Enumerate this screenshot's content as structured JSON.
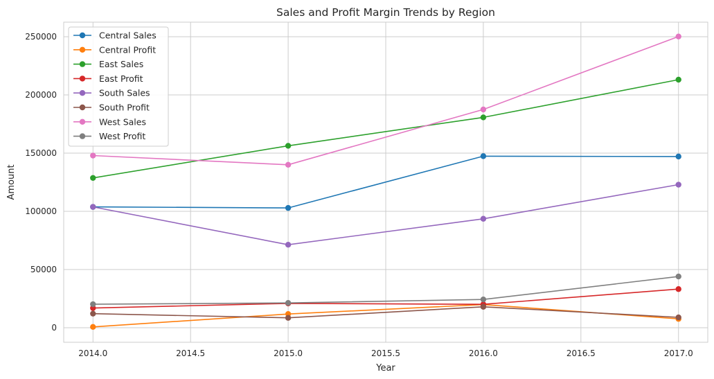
{
  "chart_data": {
    "type": "line",
    "title": "Sales and Profit Margin Trends by Region",
    "xlabel": "Year",
    "ylabel": "Amount",
    "xlim": [
      2013.85,
      2017.15
    ],
    "ylim": [
      -12500,
      262500
    ],
    "x_ticks": [
      2014.0,
      2014.5,
      2015.0,
      2015.5,
      2016.0,
      2016.5,
      2017.0
    ],
    "x_tick_labels": [
      "2014.0",
      "2014.5",
      "2015.0",
      "2015.5",
      "2016.0",
      "2016.5",
      "2017.0"
    ],
    "y_ticks": [
      0,
      50000,
      100000,
      150000,
      200000,
      250000
    ],
    "y_tick_labels": [
      "0",
      "50000",
      "100000",
      "150000",
      "200000",
      "250000"
    ],
    "grid": true,
    "legend_position": "top-left",
    "x": [
      2014,
      2015,
      2016,
      2017
    ],
    "series": [
      {
        "name": "Central Sales",
        "color": "#1f77b4",
        "values": [
          103800,
          102900,
          147400,
          147100
        ]
      },
      {
        "name": "Central Profit",
        "color": "#ff7f0e",
        "values": [
          700,
          11800,
          19900,
          7600
        ]
      },
      {
        "name": "East Sales",
        "color": "#2ca02c",
        "values": [
          128700,
          156300,
          180700,
          213100
        ]
      },
      {
        "name": "East Profit",
        "color": "#d62728",
        "values": [
          16900,
          20900,
          20100,
          33200
        ]
      },
      {
        "name": "South Sales",
        "color": "#9467bd",
        "values": [
          103800,
          71300,
          93600,
          122900
        ]
      },
      {
        "name": "South Profit",
        "color": "#8c564b",
        "values": [
          12100,
          8500,
          18000,
          8900
        ]
      },
      {
        "name": "West Sales",
        "color": "#e377c2",
        "values": [
          147900,
          140000,
          187500,
          250200
        ]
      },
      {
        "name": "West Profit",
        "color": "#7f7f7f",
        "values": [
          20200,
          21300,
          24300,
          44000
        ]
      }
    ]
  }
}
